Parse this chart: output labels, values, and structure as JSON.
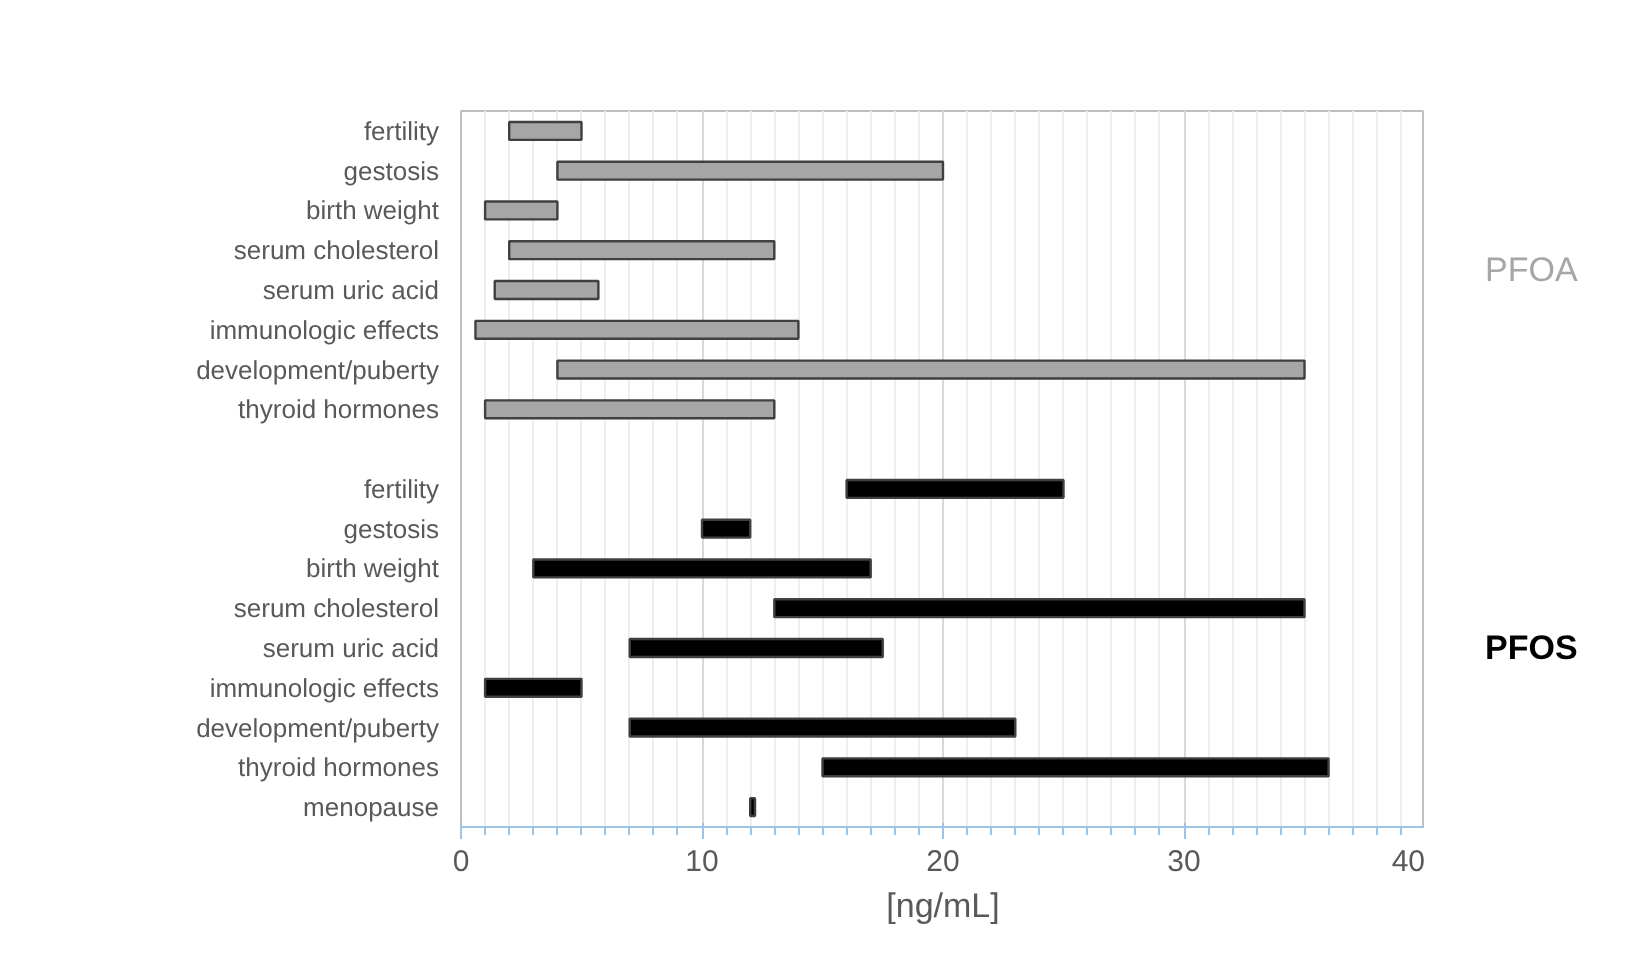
{
  "chart_data": {
    "type": "bar",
    "orientation": "horizontal",
    "xlabel": "[ng/mL]",
    "categories": [
      "fertility",
      "gestosis",
      "birth weight",
      "serum cholesterol",
      "serum uric acid",
      "immunologic effects",
      "development/puberty",
      "thyroid hormones",
      null,
      "fertility",
      "gestosis",
      "birth weight",
      "serum cholesterol",
      "serum uric acid",
      "immunologic effects",
      "development/puberty",
      "thyroid hormones",
      "menopause"
    ],
    "series": [
      {
        "name": "PFOA",
        "color": "#a6a6a6",
        "base": [
          2,
          4,
          1,
          2,
          1.4,
          0.6,
          4,
          1,
          null,
          null,
          null,
          null,
          null,
          null,
          null,
          null,
          null,
          null
        ],
        "values": [
          3,
          16,
          3,
          11,
          4.3,
          13.4,
          31,
          12,
          null,
          null,
          null,
          null,
          null,
          null,
          null,
          null,
          null,
          null
        ]
      },
      {
        "name": "PFOS",
        "color": "#000000",
        "base": [
          null,
          null,
          null,
          null,
          null,
          null,
          null,
          null,
          null,
          16,
          10,
          3,
          13,
          7,
          1,
          7,
          15,
          12
        ],
        "values": [
          null,
          null,
          null,
          null,
          null,
          null,
          null,
          null,
          null,
          9,
          2,
          14,
          22,
          10.5,
          4,
          16,
          21,
          0.2
        ]
      }
    ],
    "xlim": [
      0,
      40
    ],
    "xticks": [
      0,
      10,
      20,
      30,
      40
    ],
    "grid": "x"
  }
}
